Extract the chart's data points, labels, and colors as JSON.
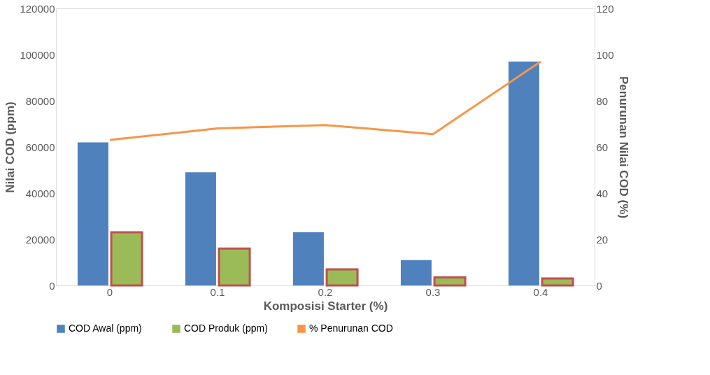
{
  "chart_data": {
    "type": "bar",
    "xlabel": "Komposisi Starter (%)",
    "ylabel": "Nilai COD (ppm)",
    "y2label": "Penurunan Nilai COD (%)",
    "categories": [
      "0",
      "0.1",
      "0.2",
      "0.3",
      "0.4"
    ],
    "series": [
      {
        "name": "COD Awal (ppm)",
        "color": "#4f81bd",
        "values": [
          62000,
          49000,
          23000,
          11000,
          97000
        ]
      },
      {
        "name": "COD Produk (ppm)",
        "color": "#9bbb59",
        "values": [
          23000,
          16000,
          7000,
          3500,
          3000
        ]
      },
      {
        "name": "% Penurunan COD",
        "color": "#f79646",
        "type": "line",
        "axis": "y2",
        "values": [
          63,
          68,
          69.5,
          65.5,
          97
        ]
      }
    ],
    "ylim": [
      0,
      120000
    ],
    "yticks": [
      0,
      20000,
      40000,
      60000,
      80000,
      100000,
      120000
    ],
    "y2lim": [
      0,
      120
    ],
    "y2ticks": [
      0,
      20,
      40,
      60,
      80,
      100,
      120
    ],
    "grid": false,
    "legend": "bottom"
  }
}
